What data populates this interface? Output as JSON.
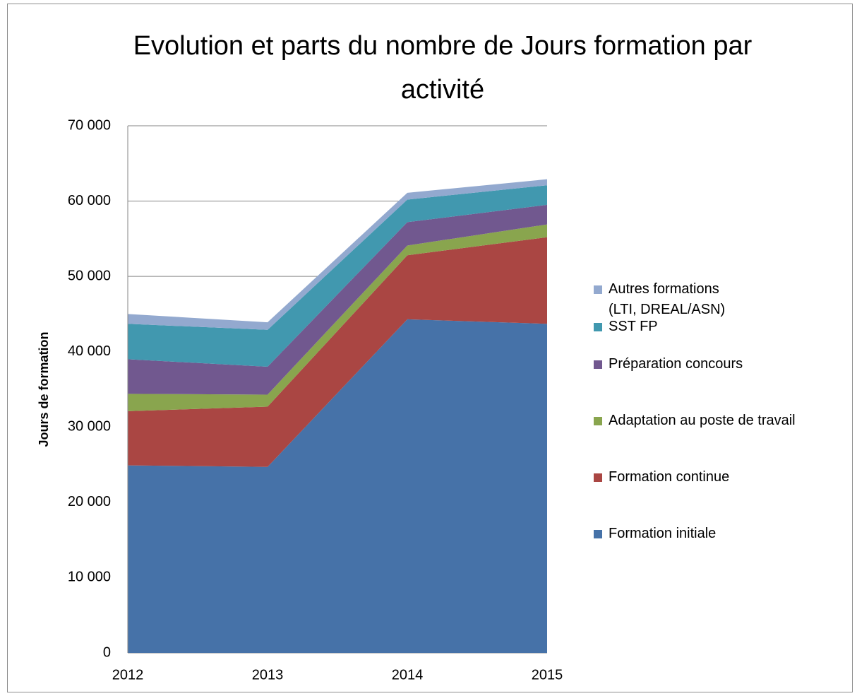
{
  "chart_data": {
    "type": "stacked_area",
    "title": "Evolution et parts du nombre de Jours formation par activité",
    "y_label": "Jours de formation",
    "categories": [
      "2012",
      "2013",
      "2014",
      "2015"
    ],
    "series": [
      {
        "name": "Formation initiale",
        "color": "#4672a8",
        "values": [
          24900,
          24700,
          44300,
          43700
        ]
      },
      {
        "name": "Formation continue",
        "color": "#aa4643",
        "values": [
          7200,
          8000,
          8500,
          11500
        ]
      },
      {
        "name": "Adaptation au poste de travail",
        "color": "#89a54e",
        "values": [
          2300,
          1600,
          1300,
          1700
        ]
      },
      {
        "name": "Préparation concours",
        "color": "#71588f",
        "values": [
          4600,
          3700,
          3100,
          2600
        ]
      },
      {
        "name": "SST FP",
        "color": "#4198af",
        "values": [
          4700,
          4900,
          3000,
          2600
        ]
      },
      {
        "name": "Autres formations (LTI, DREAL/ASN)",
        "color": "#93a9cf",
        "values": [
          1300,
          1000,
          900,
          800
        ]
      }
    ],
    "ylim": [
      0,
      70000
    ],
    "yticks": [
      0,
      {
        "value": 10000,
        "label": "10 000"
      },
      {
        "value": 20000,
        "label": "20 000"
      },
      {
        "value": 30000,
        "label": "30 000"
      },
      {
        "value": 40000,
        "label": "40 000"
      },
      {
        "value": 50000,
        "label": "50 000"
      },
      {
        "value": 60000,
        "label": "60 000"
      },
      {
        "value": 70000,
        "label": "70 000"
      }
    ],
    "grid": true,
    "legend": "right"
  }
}
